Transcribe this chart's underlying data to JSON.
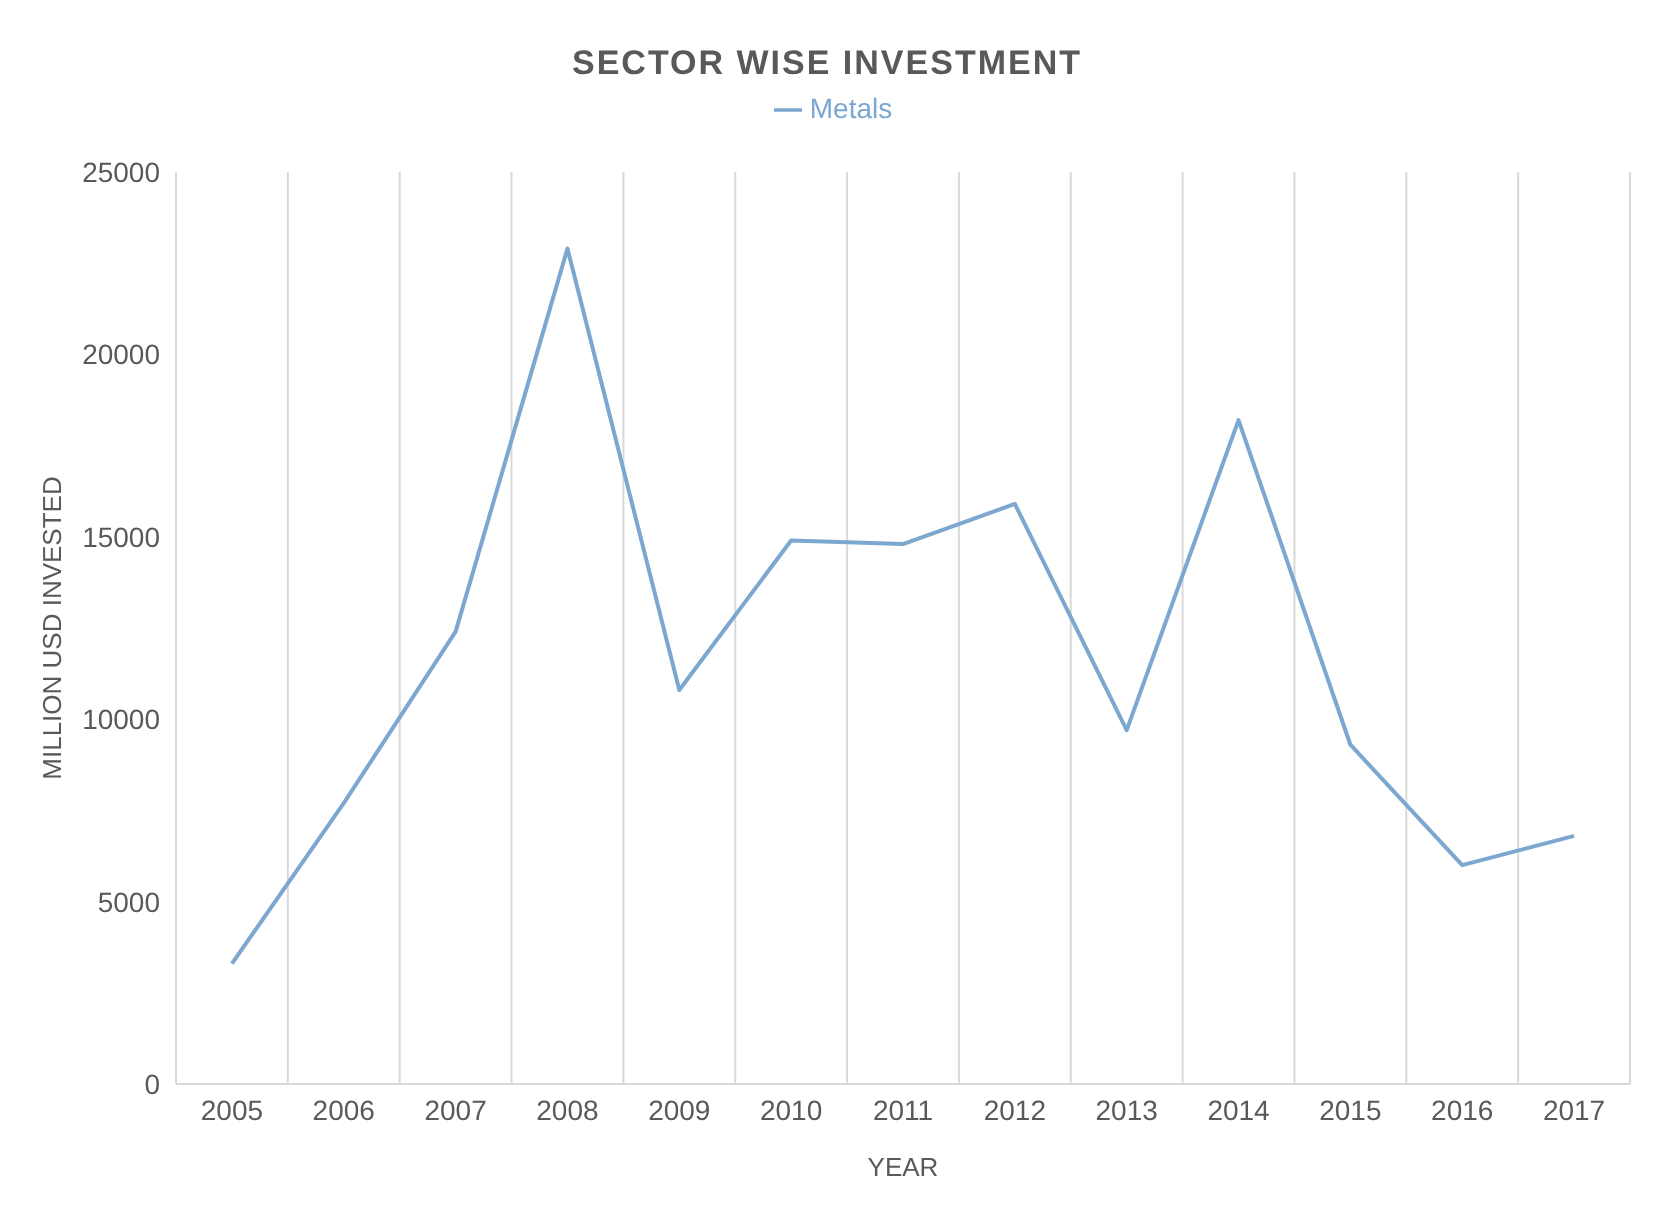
{
  "chart_data": {
    "type": "line",
    "title": "SECTOR WISE INVESTMENT",
    "xlabel": "YEAR",
    "ylabel": "MILLION USD INVESTED",
    "categories": [
      "2005",
      "2006",
      "2007",
      "2008",
      "2009",
      "2010",
      "2011",
      "2012",
      "2013",
      "2014",
      "2015",
      "2016",
      "2017"
    ],
    "series": [
      {
        "name": "Metals",
        "color": "#7ba7d0",
        "values": [
          3300,
          7700,
          12400,
          22900,
          10800,
          14900,
          14800,
          15900,
          9700,
          18200,
          9300,
          6000,
          6800
        ]
      }
    ],
    "ylim": [
      0,
      25000
    ],
    "yticks": [
      0,
      5000,
      10000,
      15000,
      20000,
      25000
    ],
    "grid": "x",
    "legend": "top",
    "marker": "none",
    "line_style": "solid"
  }
}
